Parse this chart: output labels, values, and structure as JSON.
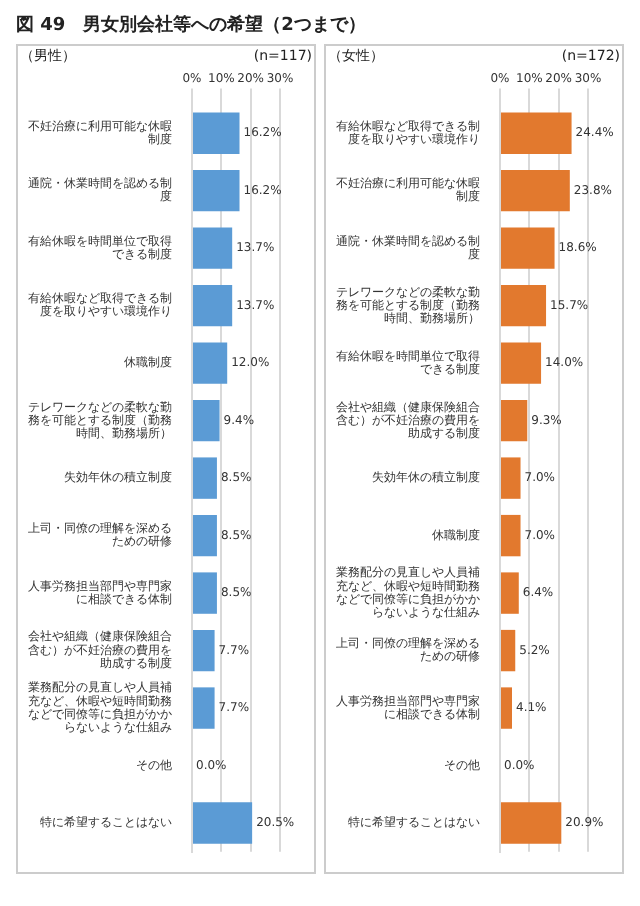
{
  "chart_data": [
    {
      "type": "bar",
      "orientation": "horizontal",
      "title": "図 49　男女別会社等への希望（2つまで）",
      "subtitle": "（男性）",
      "annotations": [
        "(n=117)"
      ],
      "categories": [
        "不妊治療に利用可能な休暇制度",
        "通院・休業時間を認める制度",
        "有給休暇を時間単位で取得できる制度",
        "有給休暇など取得できる制度を取りやすい環境作り",
        "休職制度",
        "テレワークなどの柔軟な勤務を可能とする制度（勤務時間、勤務場所）",
        "失効年休の積立制度",
        "上司・同僚の理解を深めるための研修",
        "人事労務担当部門や専門家に相談できる体制",
        "会社や組織（健康保険組合含む）が不妊治療の費用を助成する制度",
        "業務配分の見直しや人員補充など、休暇や短時間勤務などで同僚等に負担がかからないような仕組み",
        "その他",
        "特に希望することはない"
      ],
      "values": [
        16.2,
        16.2,
        13.7,
        13.7,
        12.0,
        9.4,
        8.5,
        8.5,
        8.5,
        7.7,
        7.7,
        0.0,
        20.5
      ],
      "value_labels": [
        "16.2%",
        "16.2%",
        "13.7%",
        "13.7%",
        "12.0%",
        "9.4%",
        "8.5%",
        "8.5%",
        "8.5%",
        "7.7%",
        "7.7%",
        "0.0%",
        "20.5%"
      ],
      "color": "#5b9bd5",
      "xlim": [
        0,
        30
      ],
      "xticks": [
        {
          "value": 0,
          "label": "0%"
        },
        {
          "value": 10,
          "label": "10%"
        },
        {
          "value": 20,
          "label": "20%"
        },
        {
          "value": 30,
          "label": "30%"
        }
      ],
      "grid": "x"
    },
    {
      "type": "bar",
      "orientation": "horizontal",
      "subtitle": "（女性）",
      "annotations": [
        "(n=172)"
      ],
      "categories": [
        "有給休暇など取得できる制度を取りやすい環境作り",
        "不妊治療に利用可能な休暇制度",
        "通院・休業時間を認める制度",
        "テレワークなどの柔軟な勤務を可能とする制度（勤務時間、勤務場所）",
        "有給休暇を時間単位で取得できる制度",
        "会社や組織（健康保険組合含む）が不妊治療の費用を助成する制度",
        "失効年休の積立制度",
        "休職制度",
        "業務配分の見直しや人員補充など、休暇や短時間勤務などで同僚等に負担がかからないような仕組み",
        "上司・同僚の理解を深めるための研修",
        "人事労務担当部門や専門家に相談できる体制",
        "その他",
        "特に希望することはない"
      ],
      "values": [
        24.4,
        23.8,
        18.6,
        15.7,
        14.0,
        9.3,
        7.0,
        7.0,
        6.4,
        5.2,
        4.1,
        0.0,
        20.9
      ],
      "value_labels": [
        "24.4%",
        "23.8%",
        "18.6%",
        "15.7%",
        "14.0%",
        "9.3%",
        "7.0%",
        "7.0%",
        "6.4%",
        "5.2%",
        "4.1%",
        "0.0%",
        "20.9%"
      ],
      "color": "#e2792e",
      "xlim": [
        0,
        30
      ],
      "xticks": [
        {
          "value": 0,
          "label": "0%"
        },
        {
          "value": 10,
          "label": "10%"
        },
        {
          "value": 20,
          "label": "20%"
        },
        {
          "value": 30,
          "label": "30%"
        }
      ],
      "grid": "x"
    }
  ]
}
